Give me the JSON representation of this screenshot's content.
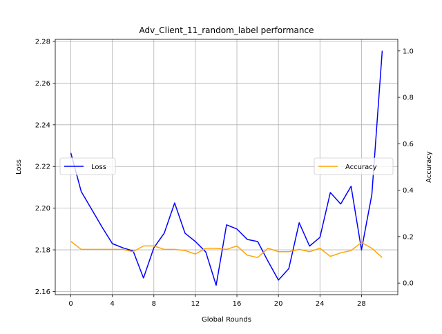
{
  "chart_data": {
    "type": "line",
    "title": "Adv_Client_11_random_label performance",
    "xlabel": "Global Rounds",
    "ylabel_left": "Loss",
    "ylabel_right": "Accuracy",
    "x": [
      0,
      1,
      2,
      3,
      4,
      5,
      6,
      7,
      8,
      9,
      10,
      11,
      12,
      13,
      14,
      15,
      16,
      17,
      18,
      19,
      20,
      21,
      22,
      23,
      24,
      25,
      26,
      27,
      28,
      29,
      30
    ],
    "xlim": [
      -1.5,
      31.5
    ],
    "xticks": [
      0,
      4,
      8,
      12,
      16,
      20,
      24,
      28
    ],
    "ylim_left": [
      2.1585,
      2.281
    ],
    "yticks_left": [
      2.16,
      2.18,
      2.2,
      2.22,
      2.24,
      2.26,
      2.28
    ],
    "ylim_right": [
      -0.05,
      1.05
    ],
    "yticks_right": [
      0.0,
      0.2,
      0.4,
      0.6,
      0.8,
      1.0
    ],
    "grid": true,
    "series": [
      {
        "name": "Loss",
        "axis": "left",
        "color": "#0000ff",
        "legend_position": "center-left",
        "values": [
          2.2265,
          2.208,
          2.1995,
          2.191,
          2.183,
          2.181,
          2.1795,
          2.1665,
          2.181,
          2.188,
          2.2025,
          2.188,
          2.184,
          2.179,
          2.163,
          2.192,
          2.19,
          2.185,
          2.184,
          2.1745,
          2.1655,
          2.171,
          2.193,
          2.1818,
          2.186,
          2.2075,
          2.202,
          2.2105,
          2.18,
          2.2065,
          2.2755
        ]
      },
      {
        "name": "Accuracy",
        "axis": "right",
        "color": "#ffa500",
        "legend_position": "center-right",
        "values": [
          0.18,
          0.145,
          0.145,
          0.145,
          0.145,
          0.145,
          0.135,
          0.16,
          0.16,
          0.145,
          0.145,
          0.14,
          0.125,
          0.15,
          0.15,
          0.145,
          0.16,
          0.12,
          0.11,
          0.15,
          0.135,
          0.135,
          0.145,
          0.135,
          0.15,
          0.115,
          0.13,
          0.14,
          0.175,
          0.15,
          0.11
        ]
      }
    ]
  }
}
